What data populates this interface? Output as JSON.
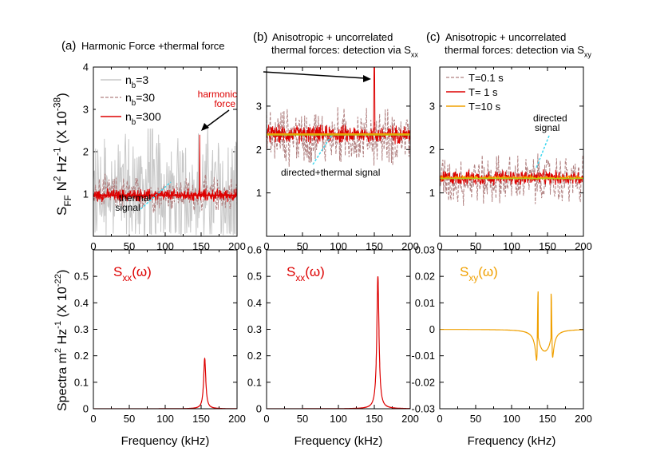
{
  "figure": {
    "panel_titles": [
      {
        "label": "(a)",
        "lines": [
          "Harmonic Force +thermal force"
        ]
      },
      {
        "label": "(b)",
        "lines": [
          "Anisotropic + uncorrelated",
          "thermal forces: detection via S"
        ],
        "sub": "xx"
      },
      {
        "label": "(c)",
        "lines": [
          "Anisotropic + uncorrelated",
          "thermal forces: detection via S"
        ],
        "sub": "xy"
      }
    ],
    "top_ylabel": {
      "main": "S",
      "sub": "FF",
      "rest": " N",
      "sup1": "2",
      "rest2": " Hz",
      "sup2": "-1",
      "rest3": " (X 10",
      "sup3": "-38",
      "rest4": ")"
    },
    "bottom_ylabel": {
      "main": "Spectra  m",
      "sup1": "2",
      "rest": " Hz",
      "sup2": "-1",
      "rest2": " (X 10",
      "sup3": "-22",
      "rest3": ")"
    },
    "xlabel": "Frequency (kHz)"
  },
  "colors": {
    "gray": "#c8c8c8",
    "dashed": "#b08080",
    "red": "#dd0000",
    "orange": "#f0a000",
    "green": "#a8d020",
    "cyan": "#40d8f0",
    "black": "#000000"
  },
  "chart_data": [
    {
      "id": "a",
      "type": "line",
      "title": "Harmonic Force +thermal force",
      "xlim": [
        0,
        200
      ],
      "ylim": [
        0,
        4
      ],
      "xticks": [
        0,
        50,
        100,
        150,
        200
      ],
      "yticks": [
        1,
        2,
        3,
        4
      ],
      "legend": {
        "position": "top-left",
        "entries": [
          {
            "name": "n",
            "sub": "b",
            "suffix": "=3",
            "style": "gray"
          },
          {
            "name": "n",
            "sub": "b",
            "suffix": "=30",
            "style": "dashed"
          },
          {
            "name": "n",
            "sub": "b",
            "suffix": "=300",
            "style": "red"
          }
        ]
      },
      "series": [
        {
          "name": "nb=3",
          "mean": 1.0,
          "noise_spread": 2.0
        },
        {
          "name": "nb=30",
          "mean": 1.0,
          "noise_spread": 0.5
        },
        {
          "name": "nb=300",
          "mean": 0.97,
          "noise_spread": 0.18,
          "peak_x": 148,
          "peak_y": 2.4
        }
      ],
      "fit_level": 0.97,
      "annotations": [
        {
          "text": "harmonic",
          "text2": "force",
          "color": "red"
        },
        {
          "text": "thermal",
          "text2": "signal",
          "color": "black"
        }
      ]
    },
    {
      "id": "b",
      "type": "line",
      "title": "Anisotropic + uncorrelated thermal forces: detection via Sxx",
      "xlim": [
        0,
        200
      ],
      "ylim": [
        0,
        4
      ],
      "xticks": [
        0,
        50,
        100,
        150,
        200
      ],
      "yticks": [
        1,
        2,
        3
      ],
      "series": [
        {
          "name": "dashed",
          "mean": 2.3,
          "noise_spread": 0.8
        },
        {
          "name": "red",
          "mean": 2.35,
          "noise_spread": 0.25,
          "peak_x": 150,
          "peak_y": 3.9
        }
      ],
      "fit_level": 2.35,
      "annotations": [
        {
          "text": "directed+thermal signal",
          "color": "black"
        }
      ]
    },
    {
      "id": "c",
      "type": "line",
      "title": "Anisotropic + uncorrelated thermal forces: detection via Sxy",
      "xlim": [
        0,
        200
      ],
      "ylim": [
        0,
        4
      ],
      "xticks": [
        0,
        50,
        100,
        150,
        200
      ],
      "yticks": [
        1,
        2,
        3
      ],
      "legend": {
        "position": "top-left",
        "entries": [
          {
            "name": "T=0.1 s",
            "style": "dashed"
          },
          {
            "name": "T= 1 s",
            "style": "red"
          },
          {
            "name": "T=10 s",
            "style": "orange"
          }
        ]
      },
      "series": [
        {
          "name": "T=0.1 s",
          "mean": 1.3,
          "noise_spread": 0.7
        },
        {
          "name": "T= 1 s",
          "mean": 1.35,
          "noise_spread": 0.2
        },
        {
          "name": "T=10 s",
          "mean": 1.35,
          "noise_spread": 0.04
        }
      ],
      "fit_level": 1.33,
      "annotations": [
        {
          "text": "directed",
          "text2": "signal",
          "color": "black"
        }
      ]
    },
    {
      "id": "d",
      "type": "line",
      "xlim": [
        0,
        200
      ],
      "ylim": [
        0,
        0.6
      ],
      "xticks": [
        0,
        50,
        100,
        150,
        200
      ],
      "yticks": [
        0,
        0.1,
        0.2,
        0.3,
        0.4,
        0.5
      ],
      "label": {
        "main": "S",
        "sub": "xx",
        "rest": "(ω)",
        "color": "red"
      },
      "series": [
        {
          "name": "Sxx",
          "peak_x": 155,
          "peak_y": 0.19,
          "width": 1.8
        }
      ]
    },
    {
      "id": "e",
      "type": "line",
      "xlim": [
        0,
        200
      ],
      "ylim": [
        0,
        0.6
      ],
      "xticks": [
        0,
        50,
        100,
        150,
        200
      ],
      "yticks": [
        0,
        0.1,
        0.2,
        0.3,
        0.4,
        0.5,
        0.6
      ],
      "label": {
        "main": "S",
        "sub": "xx",
        "rest": "(ω)",
        "color": "red"
      },
      "series": [
        {
          "name": "Sxx",
          "peak_x": 155,
          "peak_y": 0.5,
          "width": 1.8
        }
      ]
    },
    {
      "id": "f",
      "type": "line",
      "xlim": [
        0,
        200
      ],
      "ylim": [
        -0.03,
        0.03
      ],
      "xticks": [
        0,
        50,
        100,
        150,
        200
      ],
      "yticks": [
        -0.03,
        -0.02,
        -0.01,
        0,
        0.01,
        0.02,
        0.03
      ],
      "label": {
        "main": "S",
        "sub": "xy",
        "rest": "(ω)",
        "color": "orange"
      },
      "series": [
        {
          "name": "Sxy",
          "resonances": [
            {
              "x": 136,
              "amp": 0.026
            },
            {
              "x": 156,
              "amp": 0.024
            }
          ],
          "mid_level": -0.01
        }
      ]
    }
  ]
}
